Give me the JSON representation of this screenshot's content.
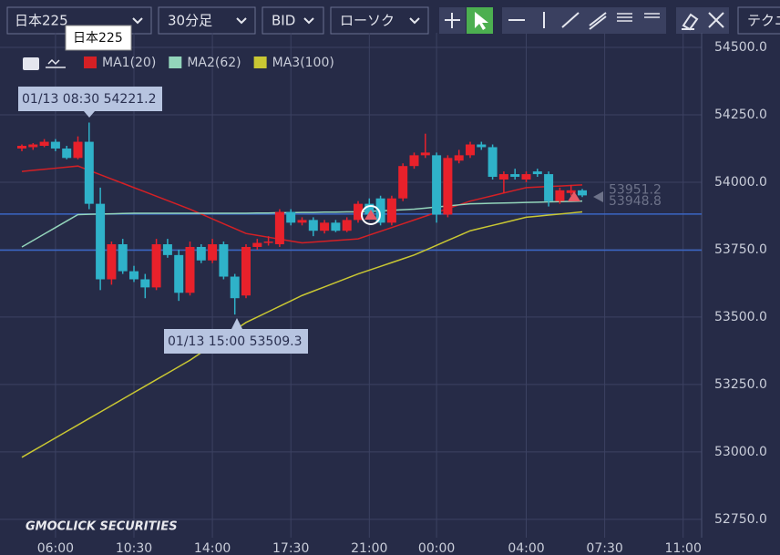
{
  "toolbar": {
    "symbol": "日本225",
    "interval": "30分足",
    "side": "BID",
    "style": "ローソク",
    "tech": "テクニ",
    "tooltip": "日本225"
  },
  "chart_data": {
    "type": "candlestick",
    "categories": [
      null,
      null,
      null,
      "06:00",
      null,
      null,
      null,
      null,
      null,
      null,
      "10:30",
      null,
      null,
      null,
      null,
      null,
      null,
      "14:00",
      null,
      null,
      null,
      null,
      null,
      null,
      "17:30",
      null,
      null,
      null,
      null,
      null,
      null,
      "21:00",
      null,
      null,
      null,
      null,
      null,
      "00:00",
      null,
      null,
      null,
      null,
      null,
      null,
      null,
      "04:00",
      null,
      null,
      null,
      null,
      null,
      null,
      "07:30",
      null,
      null,
      null,
      null,
      null,
      null,
      "11:00",
      null
    ],
    "open": [
      54125,
      54130,
      54135,
      54150,
      54125,
      54090,
      54150,
      53920,
      53640,
      53770,
      53670,
      53640,
      53610,
      53770,
      53730,
      53590,
      53760,
      53710,
      53770,
      53650,
      53580,
      53760,
      53775,
      53770,
      53890,
      53850,
      53860,
      53820,
      53850,
      53820,
      53860,
      53920,
      53940,
      53850,
      53940,
      54060,
      54100,
      54100,
      53880,
      54080,
      54100,
      54140,
      54130,
      54010,
      54030,
      54010,
      54040,
      54030,
      53930,
      53960,
      53970,
      null,
      null,
      null,
      null,
      null,
      null,
      null,
      null,
      null,
      null
    ],
    "high": [
      54140,
      54145,
      54160,
      54160,
      54135,
      54170,
      54221.2,
      53980,
      53780,
      53790,
      53690,
      53660,
      53790,
      53790,
      53750,
      53780,
      53770,
      53790,
      53780,
      53660,
      53770,
      53790,
      53800,
      53900,
      53900,
      53870,
      53870,
      53860,
      53860,
      53870,
      53930,
      53940,
      53950,
      53950,
      54070,
      54110,
      54180,
      54110,
      54100,
      54120,
      54150,
      54150,
      54140,
      54040,
      54050,
      54040,
      54050,
      54040,
      53980,
      53990,
      53975,
      null,
      null,
      null,
      null,
      null,
      null,
      null,
      null,
      null,
      null
    ],
    "low": [
      54115,
      54120,
      54130,
      54115,
      54085,
      54085,
      53900,
      53600,
      53620,
      53660,
      53630,
      53570,
      53600,
      53720,
      53560,
      53580,
      53700,
      53700,
      53640,
      53509.3,
      53570,
      53750,
      53765,
      53760,
      53840,
      53840,
      53800,
      53810,
      53815,
      53815,
      53850,
      53870,
      53840,
      53840,
      53930,
      54050,
      54090,
      53850,
      53870,
      54070,
      54090,
      54120,
      54010,
      53960,
      54010,
      54000,
      54020,
      53910,
      53920,
      53950,
      53945,
      null,
      null,
      null,
      null,
      null,
      null,
      null,
      null,
      null,
      null
    ],
    "close": [
      54135,
      54140,
      54150,
      54125,
      54090,
      54150,
      53920,
      53640,
      53770,
      53670,
      53640,
      53610,
      53770,
      53730,
      53590,
      53760,
      53710,
      53770,
      53650,
      53570,
      53760,
      53775,
      53780,
      53890,
      53850,
      53860,
      53820,
      53850,
      53820,
      53860,
      53920,
      53880,
      53850,
      53940,
      54060,
      54100,
      54110,
      53880,
      54090,
      54100,
      54140,
      54130,
      54020,
      54030,
      54020,
      54030,
      54030,
      53930,
      53970,
      53970,
      53951.2,
      null,
      null,
      null,
      null,
      null,
      null,
      null,
      null,
      null,
      null
    ],
    "up_color": "#e8212b",
    "down_color": "#2fb2c9",
    "series": [
      {
        "name": "MA1(20)",
        "color": "#d42025",
        "values": [
          54040,
          54044,
          54048,
          54052,
          54056,
          54060,
          54044,
          54028,
          54012,
          53996,
          53980,
          53964,
          53948,
          53932,
          53916,
          53900,
          53882,
          53864,
          53846,
          53828,
          53810,
          53803,
          53796,
          53789,
          53782,
          53775,
          53778,
          53781,
          53784,
          53787,
          53790,
          53804,
          53818,
          53832,
          53846,
          53860,
          53874,
          53888,
          53902,
          53916,
          53930,
          53940,
          53950,
          53960,
          53970,
          53980,
          53982,
          53984,
          53986,
          53988,
          53990,
          null,
          null,
          null,
          null,
          null,
          null,
          null,
          null,
          null,
          null
        ]
      },
      {
        "name": "MA2(62)",
        "color": "#93d5bb",
        "values": [
          53760,
          53784,
          53808,
          53832,
          53856,
          53880,
          53881,
          53882,
          53883,
          53884,
          53885,
          53885,
          53885,
          53885,
          53885,
          53885,
          53885,
          53885,
          53885,
          53885,
          53885,
          53886,
          53886,
          53887,
          53887,
          53888,
          53888,
          53889,
          53889,
          53890,
          53890,
          53892,
          53894,
          53896,
          53898,
          53900,
          53904,
          53908,
          53912,
          53916,
          53920,
          53921,
          53922,
          53923,
          53924,
          53925,
          53926,
          53927,
          53928,
          53929,
          53930,
          null,
          null,
          null,
          null,
          null,
          null,
          null,
          null,
          null,
          null
        ]
      },
      {
        "name": "MA3(100)",
        "color": "#c9c733",
        "values": [
          52980,
          53004,
          53028,
          53052,
          53076,
          53100,
          53124,
          53148,
          53172,
          53196,
          53220,
          53244,
          53268,
          53292,
          53316,
          53340,
          53368,
          53396,
          53424,
          53452,
          53480,
          53500,
          53520,
          53540,
          53560,
          53580,
          53596,
          53612,
          53628,
          53644,
          53660,
          53674,
          53688,
          53702,
          53716,
          53730,
          53748,
          53766,
          53784,
          53802,
          53820,
          53830,
          53840,
          53850,
          53860,
          53870,
          53874,
          53878,
          53882,
          53886,
          53890,
          null,
          null,
          null,
          null,
          null,
          null,
          null,
          null,
          null,
          null
        ]
      }
    ],
    "ylim": [
      52682,
      54554
    ],
    "yticks": [
      {
        "value": 52750,
        "label": "52750.0"
      },
      {
        "value": 53000,
        "label": "53000.0"
      },
      {
        "value": 53250,
        "label": "53250.0"
      },
      {
        "value": 53500,
        "label": "53500.0"
      },
      {
        "value": 53750,
        "label": "53750.0"
      },
      {
        "value": 54000,
        "label": "54000.0"
      },
      {
        "value": 54250,
        "label": "54250.0"
      },
      {
        "value": 54500,
        "label": "54500.0"
      }
    ],
    "grid": true,
    "price_lines": [
      53882,
      53748
    ],
    "price_labels": [
      53951.2,
      53948.8
    ],
    "annotations": [
      "01/13 08:30 54221.2",
      "01/13 15:00 53509.3"
    ],
    "watermark": "GMOCLICK SECURITIES"
  }
}
